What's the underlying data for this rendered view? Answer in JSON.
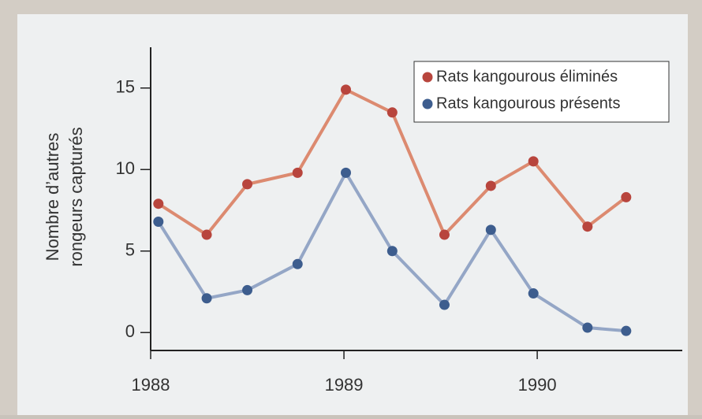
{
  "chart_data": {
    "type": "line",
    "ylabel": [
      "Nombre d’autres",
      "rongeurs capturés"
    ],
    "x": [
      1988.04,
      1988.29,
      1988.5,
      1988.76,
      1989.01,
      1989.25,
      1989.52,
      1989.76,
      1989.98,
      1990.26,
      1990.46
    ],
    "series": [
      {
        "name": "Rats kangourous éliminés",
        "color": "#b8453d",
        "line_color": "#dc8a70",
        "values": [
          7.9,
          6.0,
          9.1,
          9.8,
          14.9,
          13.5,
          6.0,
          9.0,
          10.5,
          6.5,
          8.3
        ]
      },
      {
        "name": "Rats kangourous présents",
        "color": "#3d5d8e",
        "line_color": "#94a6c6",
        "values": [
          6.8,
          2.1,
          2.6,
          4.2,
          9.8,
          5.0,
          1.7,
          6.3,
          2.4,
          0.3,
          0.1
        ]
      }
    ],
    "xlim": [
      1988,
      1990.73
    ],
    "xticks": [
      1988,
      1989,
      1990
    ],
    "ylim": [
      -1.1,
      17.5
    ],
    "yticks": [
      0,
      5,
      10,
      15
    ],
    "legend": "top-right"
  }
}
